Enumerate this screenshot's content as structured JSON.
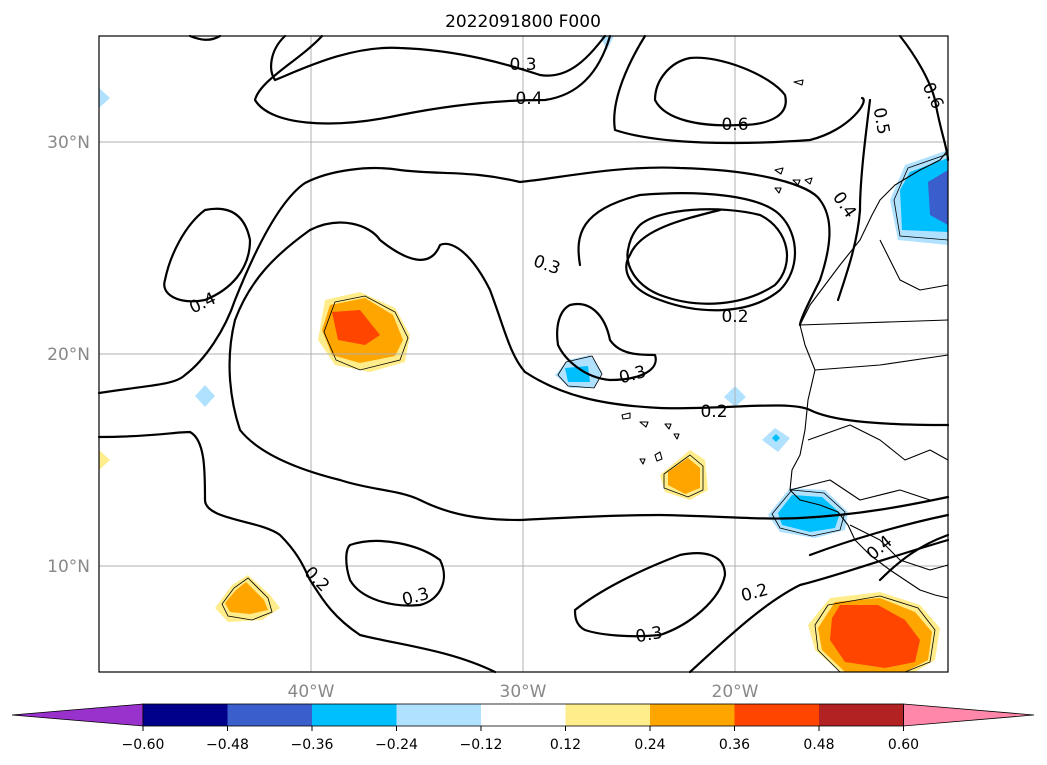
{
  "title": "2022091800 F000",
  "map": {
    "lat_labels": [
      "30°N",
      "20°N",
      "10°N"
    ],
    "lon_labels": [
      "40°W",
      "30°W",
      "20°W"
    ],
    "lat_extent": [
      5,
      35
    ],
    "lon_extent": [
      -50,
      -10
    ],
    "gridlines": true
  },
  "contour_labels": [
    "0.3",
    "0.4",
    "0.6",
    "0.5",
    "0.6",
    "0.4",
    "0.4",
    "0.3",
    "0.2",
    "0.3",
    "0.2",
    "0.2",
    "0.3",
    "0.2",
    "0.3",
    "0.4"
  ],
  "colorbar": {
    "tick_labels": [
      "−0.60",
      "−0.48",
      "−0.36",
      "−0.24",
      "−0.12",
      "0.12",
      "0.24",
      "0.36",
      "0.48",
      "0.60"
    ],
    "colors": [
      "#9932cc",
      "#00008b",
      "#3a5fcd",
      "#00bfff",
      "#b0e2ff",
      "#ffffff",
      "#ffec8b",
      "#ffa500",
      "#ff4500",
      "#b22222",
      "#ff88aa"
    ],
    "extend": "both"
  }
}
